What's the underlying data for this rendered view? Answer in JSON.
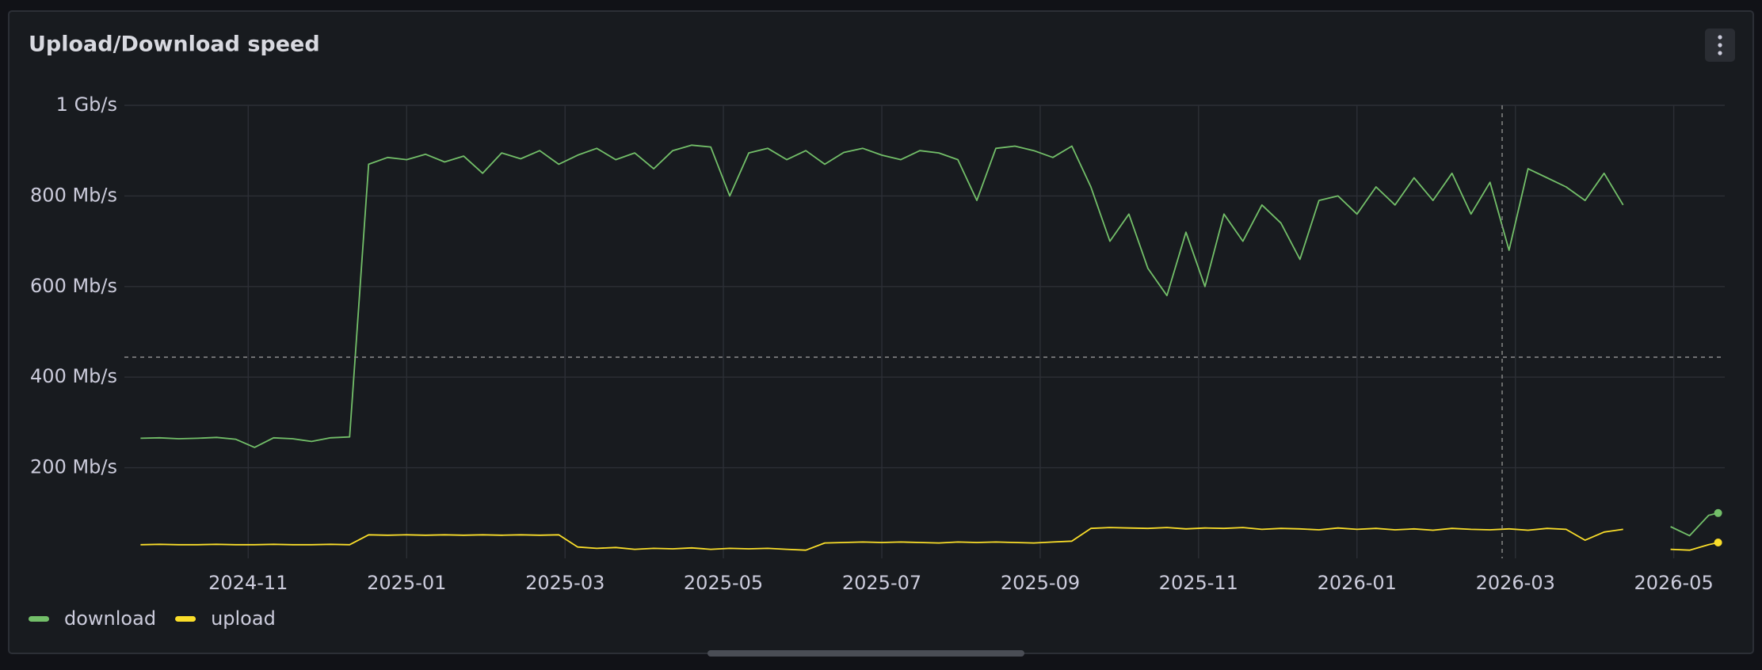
{
  "chart_data": {
    "type": "line",
    "title": "Upload/Download speed",
    "x": [
      2024.72,
      2024.74,
      2024.76,
      2024.78,
      2024.8,
      2024.82,
      2024.84,
      2024.86,
      2024.88,
      2024.9,
      2024.92,
      2024.94,
      2024.96,
      2024.98,
      2025.0,
      2025.02,
      2025.04,
      2025.06,
      2025.08,
      2025.1,
      2025.12,
      2025.14,
      2025.16,
      2025.18,
      2025.2,
      2025.22,
      2025.24,
      2025.26,
      2025.28,
      2025.3,
      2025.32,
      2025.34,
      2025.36,
      2025.38,
      2025.4,
      2025.42,
      2025.44,
      2025.46,
      2025.48,
      2025.5,
      2025.52,
      2025.54,
      2025.56,
      2025.58,
      2025.6,
      2025.62,
      2025.64,
      2025.66,
      2025.68,
      2025.7,
      2025.72,
      2025.74,
      2025.76,
      2025.78,
      2025.8,
      2025.82,
      2025.84,
      2025.86,
      2025.88,
      2025.9,
      2025.92,
      2025.94,
      2025.96,
      2025.98,
      2026.0,
      2026.02,
      2026.04,
      2026.06,
      2026.08,
      2026.1,
      2026.12,
      2026.14,
      2026.16,
      2026.18,
      2026.2,
      2026.22,
      2026.24,
      2026.26,
      2026.28,
      2026.31,
      2026.33,
      2026.35,
      2026.37,
      2026.38
    ],
    "series": [
      {
        "name": "download",
        "color": "#73bf69",
        "values": [
          265,
          266,
          264,
          265,
          267,
          263,
          245,
          266,
          264,
          258,
          266,
          268,
          870,
          885,
          880,
          892,
          875,
          888,
          850,
          895,
          882,
          900,
          870,
          890,
          905,
          880,
          895,
          860,
          900,
          912,
          908,
          800,
          895,
          905,
          880,
          900,
          870,
          896,
          905,
          890,
          880,
          900,
          895,
          880,
          790,
          905,
          910,
          900,
          885,
          910,
          820,
          700,
          760,
          640,
          580,
          720,
          600,
          760,
          700,
          780,
          740,
          660,
          790,
          800,
          760,
          820,
          780,
          840,
          790,
          850,
          760,
          830,
          680,
          860,
          840,
          820,
          790,
          850,
          780,
          null,
          70,
          50,
          95,
          100
        ]
      },
      {
        "name": "upload",
        "color": "#fade2a",
        "values": [
          30,
          31,
          30,
          30,
          31,
          30,
          30,
          31,
          30,
          30,
          31,
          30,
          52,
          51,
          52,
          51,
          52,
          51,
          52,
          51,
          52,
          51,
          52,
          25,
          22,
          24,
          20,
          22,
          21,
          23,
          20,
          22,
          21,
          22,
          20,
          18,
          34,
          35,
          36,
          35,
          36,
          35,
          34,
          36,
          35,
          36,
          35,
          34,
          36,
          38,
          66,
          68,
          67,
          66,
          68,
          65,
          67,
          66,
          68,
          64,
          66,
          65,
          63,
          67,
          64,
          66,
          63,
          65,
          62,
          66,
          64,
          63,
          65,
          62,
          66,
          64,
          40,
          58,
          64,
          null,
          20,
          18,
          30,
          35
        ]
      }
    ],
    "xlim": [
      2024.703,
      2026.387
    ],
    "xticks": [
      {
        "value": 2024.8333,
        "label": "2024-11"
      },
      {
        "value": 2025.0,
        "label": "2025-01"
      },
      {
        "value": 2025.1667,
        "label": "2025-03"
      },
      {
        "value": 2025.3333,
        "label": "2025-05"
      },
      {
        "value": 2025.5,
        "label": "2025-07"
      },
      {
        "value": 2025.6667,
        "label": "2025-09"
      },
      {
        "value": 2025.8333,
        "label": "2025-11"
      },
      {
        "value": 2026.0,
        "label": "2026-01"
      },
      {
        "value": 2026.1667,
        "label": "2026-03"
      },
      {
        "value": 2026.3333,
        "label": "2026-05"
      }
    ],
    "ylim": [
      0,
      1000
    ],
    "yticks": [
      {
        "value": 200,
        "label": "200 Mb/s"
      },
      {
        "value": 400,
        "label": "400 Mb/s"
      },
      {
        "value": 600,
        "label": "600 Mb/s"
      },
      {
        "value": 800,
        "label": "800 Mb/s"
      },
      {
        "value": 1000,
        "label": "1 Gb/s"
      }
    ],
    "grid": true,
    "legend": "bottom-left"
  }
}
